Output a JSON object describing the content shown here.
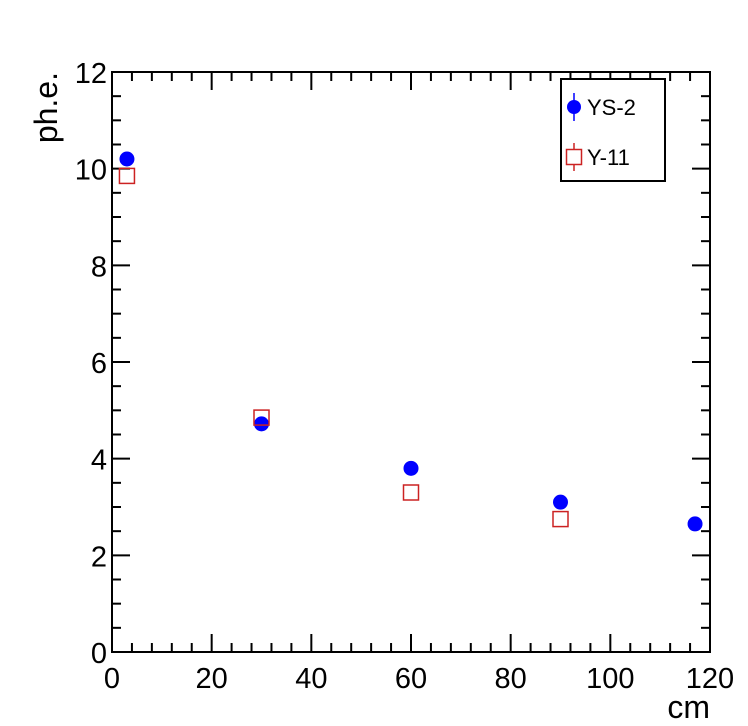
{
  "chart_data": {
    "type": "scatter",
    "title": "",
    "xlabel": "cm",
    "ylabel": "ph.e.",
    "xlim": [
      0,
      120
    ],
    "ylim": [
      0,
      12
    ],
    "x_major_ticks": [
      0,
      20,
      40,
      60,
      80,
      100,
      120
    ],
    "y_major_ticks": [
      0,
      2,
      4,
      6,
      8,
      10,
      12
    ],
    "x_tick_labels": [
      "0",
      "20",
      "40",
      "60",
      "80",
      "100",
      "120"
    ],
    "y_tick_labels": [
      "0",
      "2",
      "4",
      "6",
      "8",
      "10",
      "12"
    ],
    "grid": false,
    "legend_position": "top-right",
    "series": [
      {
        "name": "YS-2",
        "marker": "filled-circle",
        "color": "#0000ff",
        "x": [
          3,
          30,
          60,
          90,
          117
        ],
        "y": [
          10.2,
          4.72,
          3.8,
          3.1,
          2.65
        ]
      },
      {
        "name": "Y-11",
        "marker": "open-square",
        "color": "#cc2222",
        "x": [
          3,
          30,
          60,
          90
        ],
        "y": [
          9.85,
          4.85,
          3.3,
          2.75
        ]
      }
    ]
  }
}
